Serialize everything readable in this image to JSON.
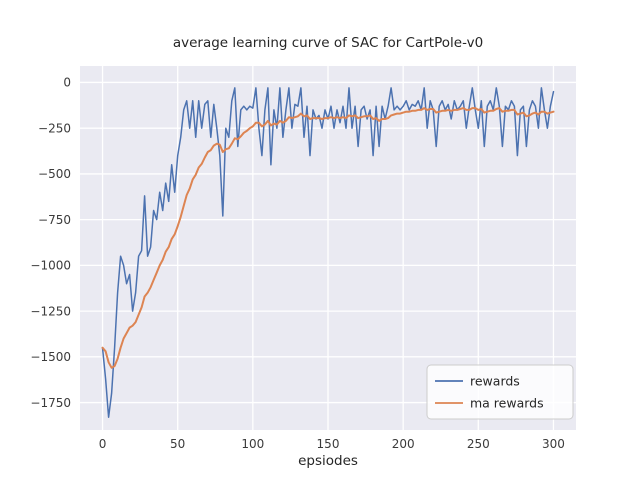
{
  "chart_data": {
    "type": "line",
    "title": "average learning curve of SAC for CartPole-v0",
    "xlabel": "epsiodes",
    "ylabel": "",
    "grid": true,
    "plot_background": "#eaeaf2",
    "grid_color": "#ffffff",
    "xlim": [
      -15,
      315
    ],
    "ylim": [
      -1900,
      90
    ],
    "xticks": [
      0,
      50,
      100,
      150,
      200,
      250,
      300
    ],
    "xtick_labels": [
      "0",
      "50",
      "100",
      "150",
      "200",
      "250",
      "300"
    ],
    "yticks": [
      0,
      -250,
      -500,
      -750,
      -1000,
      -1250,
      -1500,
      -1750
    ],
    "ytick_labels": [
      "0",
      "−250",
      "−500",
      "−750",
      "−1000",
      "−1250",
      "−1500",
      "−1750"
    ],
    "legend": {
      "position": "lower right",
      "entries": [
        "rewards",
        "ma rewards"
      ]
    },
    "x": [
      0,
      2,
      4,
      6,
      8,
      10,
      12,
      14,
      16,
      18,
      20,
      22,
      24,
      26,
      28,
      30,
      32,
      34,
      36,
      38,
      40,
      42,
      44,
      46,
      48,
      50,
      52,
      54,
      56,
      58,
      60,
      62,
      64,
      66,
      68,
      70,
      72,
      74,
      76,
      78,
      80,
      82,
      84,
      86,
      88,
      90,
      92,
      94,
      96,
      98,
      100,
      102,
      104,
      106,
      108,
      110,
      112,
      114,
      116,
      118,
      120,
      122,
      124,
      126,
      128,
      130,
      132,
      134,
      136,
      138,
      140,
      142,
      144,
      146,
      148,
      150,
      152,
      154,
      156,
      158,
      160,
      162,
      164,
      166,
      168,
      170,
      172,
      174,
      176,
      178,
      180,
      182,
      184,
      186,
      188,
      190,
      192,
      194,
      196,
      198,
      200,
      202,
      204,
      206,
      208,
      210,
      212,
      214,
      216,
      218,
      220,
      222,
      224,
      226,
      228,
      230,
      232,
      234,
      236,
      238,
      240,
      242,
      244,
      246,
      248,
      250,
      252,
      254,
      256,
      258,
      260,
      262,
      264,
      266,
      268,
      270,
      272,
      274,
      276,
      278,
      280,
      282,
      284,
      286,
      288,
      290,
      292,
      294,
      296,
      298,
      300
    ],
    "series": [
      {
        "name": "rewards",
        "color": "#4c72b0",
        "width": 1.5,
        "values": [
          -1450,
          -1620,
          -1830,
          -1700,
          -1450,
          -1150,
          -950,
          -1000,
          -1100,
          -1050,
          -1250,
          -1150,
          -950,
          -920,
          -620,
          -950,
          -900,
          -700,
          -750,
          -600,
          -700,
          -550,
          -650,
          -450,
          -600,
          -400,
          -300,
          -150,
          -100,
          -250,
          -100,
          -300,
          -100,
          -250,
          -120,
          -100,
          -300,
          -120,
          -250,
          -400,
          -730,
          -250,
          -300,
          -100,
          -30,
          -350,
          -150,
          -130,
          -150,
          -130,
          -140,
          -30,
          -250,
          -400,
          -150,
          -30,
          -450,
          -150,
          -250,
          -30,
          -300,
          -150,
          -30,
          -250,
          -120,
          -130,
          -30,
          -300,
          -130,
          -400,
          -150,
          -200,
          -180,
          -250,
          -150,
          -200,
          -130,
          -250,
          -150,
          -220,
          -130,
          -250,
          -30,
          -250,
          -130,
          -350,
          -150,
          -130,
          -200,
          -150,
          -400,
          -130,
          -350,
          -130,
          -200,
          -130,
          -30,
          -150,
          -130,
          -150,
          -130,
          -100,
          -150,
          -120,
          -130,
          -100,
          -150,
          -30,
          -250,
          -100,
          -150,
          -350,
          -130,
          -100,
          -150,
          -120,
          -200,
          -100,
          -150,
          -130,
          -100,
          -250,
          -130,
          -30,
          -150,
          -250,
          -100,
          -350,
          -130,
          -100,
          -150,
          -30,
          -130,
          -350,
          -130,
          -150,
          -100,
          -130,
          -400,
          -150,
          -130,
          -350,
          -150,
          -100,
          -130,
          -250,
          -30,
          -150,
          -250,
          -130,
          -50
        ]
      },
      {
        "name": "ma rewards",
        "color": "#dd8452",
        "width": 2,
        "values": [
          -1450,
          -1470,
          -1530,
          -1560,
          -1550,
          -1510,
          -1450,
          -1400,
          -1370,
          -1340,
          -1330,
          -1310,
          -1270,
          -1230,
          -1170,
          -1150,
          -1120,
          -1080,
          -1040,
          -1000,
          -970,
          -925,
          -900,
          -855,
          -830,
          -785,
          -735,
          -675,
          -615,
          -580,
          -530,
          -505,
          -465,
          -445,
          -410,
          -380,
          -370,
          -345,
          -335,
          -340,
          -380,
          -365,
          -360,
          -335,
          -305,
          -310,
          -295,
          -275,
          -265,
          -250,
          -240,
          -220,
          -220,
          -240,
          -230,
          -210,
          -235,
          -225,
          -230,
          -210,
          -220,
          -210,
          -190,
          -195,
          -190,
          -185,
          -170,
          -185,
          -180,
          -200,
          -195,
          -195,
          -195,
          -200,
          -195,
          -195,
          -190,
          -195,
          -190,
          -195,
          -190,
          -195,
          -180,
          -185,
          -180,
          -195,
          -190,
          -185,
          -185,
          -180,
          -200,
          -195,
          -210,
          -200,
          -200,
          -195,
          -180,
          -175,
          -170,
          -170,
          -165,
          -160,
          -160,
          -155,
          -155,
          -150,
          -150,
          -140,
          -150,
          -145,
          -145,
          -165,
          -160,
          -155,
          -155,
          -150,
          -155,
          -150,
          -150,
          -145,
          -140,
          -150,
          -150,
          -140,
          -140,
          -150,
          -145,
          -165,
          -160,
          -155,
          -155,
          -145,
          -140,
          -160,
          -155,
          -155,
          -150,
          -150,
          -175,
          -170,
          -165,
          -185,
          -180,
          -170,
          -165,
          -175,
          -160,
          -160,
          -170,
          -165,
          -160
        ]
      }
    ]
  }
}
